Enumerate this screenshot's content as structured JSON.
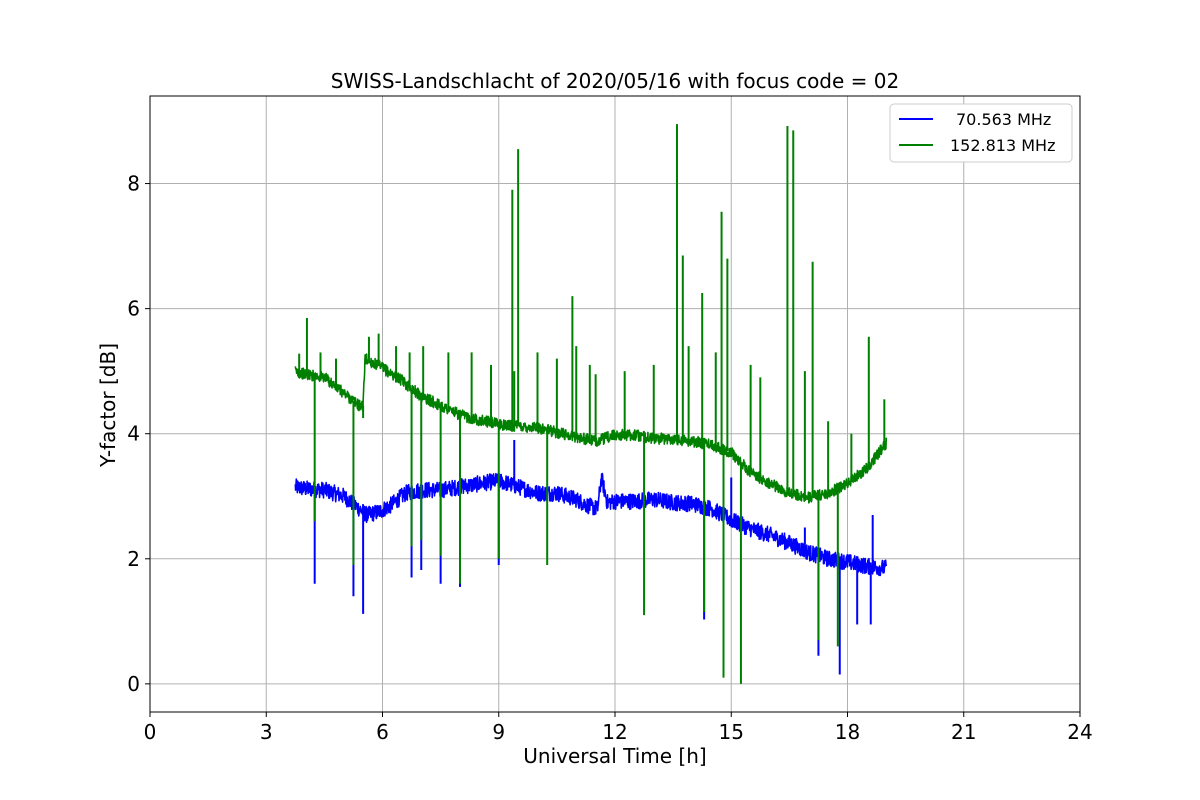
{
  "chart_data": {
    "type": "line",
    "title": "SWISS-Landschlacht of 2020/05/16 with focus code = 02",
    "xlabel": "Universal Time [h]",
    "ylabel": "Y-factor [dB]",
    "xlim": [
      0,
      24
    ],
    "ylim": [
      -0.45,
      9.4
    ],
    "xticks": [
      0,
      3,
      6,
      9,
      12,
      15,
      18,
      21,
      24
    ],
    "xtick_labels": [
      "0",
      "3",
      "6",
      "9",
      "12",
      "15",
      "18",
      "21",
      "24"
    ],
    "yticks": [
      0,
      2,
      4,
      6,
      8
    ],
    "ytick_labels": [
      "0",
      "2",
      "4",
      "6",
      "8"
    ],
    "grid": true,
    "legend_position": "top-right",
    "series": [
      {
        "name": "70.563 MHz",
        "color": "#0000ff",
        "noise": 0.13,
        "x_start": 3.75,
        "x_end": 19.0,
        "baseline": [
          [
            3.75,
            3.15
          ],
          [
            4.0,
            3.12
          ],
          [
            4.5,
            3.1
          ],
          [
            5.0,
            3.0
          ],
          [
            5.3,
            2.85
          ],
          [
            5.6,
            2.7
          ],
          [
            5.9,
            2.75
          ],
          [
            6.2,
            2.85
          ],
          [
            6.6,
            3.05
          ],
          [
            7.0,
            3.1
          ],
          [
            7.5,
            3.1
          ],
          [
            8.0,
            3.15
          ],
          [
            8.5,
            3.2
          ],
          [
            9.0,
            3.25
          ],
          [
            9.5,
            3.15
          ],
          [
            10.0,
            3.05
          ],
          [
            10.5,
            3.05
          ],
          [
            11.0,
            2.95
          ],
          [
            11.3,
            2.85
          ],
          [
            11.55,
            2.8
          ],
          [
            11.65,
            3.3
          ],
          [
            11.8,
            2.9
          ],
          [
            12.0,
            2.92
          ],
          [
            12.5,
            2.92
          ],
          [
            13.0,
            2.95
          ],
          [
            13.5,
            2.9
          ],
          [
            14.0,
            2.88
          ],
          [
            14.5,
            2.8
          ],
          [
            15.0,
            2.62
          ],
          [
            15.5,
            2.48
          ],
          [
            16.0,
            2.38
          ],
          [
            16.5,
            2.25
          ],
          [
            17.0,
            2.1
          ],
          [
            17.5,
            2.0
          ],
          [
            18.0,
            1.95
          ],
          [
            18.5,
            1.88
          ],
          [
            19.0,
            1.85
          ]
        ],
        "spikes": [
          [
            4.25,
            1.6
          ],
          [
            5.25,
            1.4
          ],
          [
            5.5,
            1.12
          ],
          [
            6.75,
            1.7
          ],
          [
            7.0,
            1.82
          ],
          [
            7.5,
            1.6
          ],
          [
            8.0,
            1.55
          ],
          [
            9.0,
            1.9
          ],
          [
            9.4,
            3.9
          ],
          [
            14.3,
            1.03
          ],
          [
            15.0,
            3.3
          ],
          [
            17.25,
            0.45
          ],
          [
            17.8,
            0.15
          ],
          [
            18.25,
            0.95
          ],
          [
            18.6,
            0.95
          ],
          [
            18.65,
            2.7
          ],
          [
            16.9,
            2.5
          ]
        ]
      },
      {
        "name": "152.813 MHz",
        "color": "#008000",
        "noise": 0.09,
        "x_start": 3.75,
        "x_end": 19.0,
        "baseline": [
          [
            3.75,
            5.0
          ],
          [
            4.0,
            4.95
          ],
          [
            4.5,
            4.9
          ],
          [
            5.0,
            4.65
          ],
          [
            5.4,
            4.45
          ],
          [
            5.5,
            4.45
          ],
          [
            5.55,
            5.2
          ],
          [
            6.0,
            5.05
          ],
          [
            6.5,
            4.85
          ],
          [
            7.0,
            4.6
          ],
          [
            7.5,
            4.45
          ],
          [
            8.0,
            4.3
          ],
          [
            8.5,
            4.22
          ],
          [
            9.0,
            4.15
          ],
          [
            9.5,
            4.12
          ],
          [
            10.0,
            4.1
          ],
          [
            10.5,
            4.02
          ],
          [
            11.0,
            3.95
          ],
          [
            11.5,
            3.88
          ],
          [
            12.0,
            3.98
          ],
          [
            12.5,
            3.98
          ],
          [
            13.0,
            3.92
          ],
          [
            13.5,
            3.92
          ],
          [
            14.0,
            3.88
          ],
          [
            14.5,
            3.82
          ],
          [
            15.0,
            3.7
          ],
          [
            15.5,
            3.38
          ],
          [
            16.0,
            3.2
          ],
          [
            16.5,
            3.05
          ],
          [
            17.0,
            2.98
          ],
          [
            17.5,
            3.05
          ],
          [
            18.0,
            3.2
          ],
          [
            18.5,
            3.45
          ],
          [
            19.0,
            3.85
          ]
        ],
        "spikes": [
          [
            3.85,
            5.28
          ],
          [
            4.05,
            5.85
          ],
          [
            4.25,
            2.6
          ],
          [
            4.4,
            5.3
          ],
          [
            4.8,
            5.2
          ],
          [
            5.25,
            1.9
          ],
          [
            5.5,
            4.25
          ],
          [
            5.65,
            5.55
          ],
          [
            5.9,
            5.6
          ],
          [
            6.35,
            5.4
          ],
          [
            6.7,
            5.3
          ],
          [
            6.75,
            2.2
          ],
          [
            7.0,
            2.3
          ],
          [
            7.05,
            5.4
          ],
          [
            7.5,
            2.05
          ],
          [
            7.7,
            5.3
          ],
          [
            8.0,
            1.6
          ],
          [
            8.3,
            5.3
          ],
          [
            8.8,
            5.1
          ],
          [
            9.0,
            2.0
          ],
          [
            9.35,
            7.9
          ],
          [
            9.4,
            5.0
          ],
          [
            9.5,
            8.55
          ],
          [
            10.0,
            5.3
          ],
          [
            10.25,
            1.9
          ],
          [
            10.5,
            5.2
          ],
          [
            10.9,
            6.2
          ],
          [
            11.0,
            5.4
          ],
          [
            11.35,
            5.1
          ],
          [
            11.5,
            4.95
          ],
          [
            12.25,
            5.0
          ],
          [
            12.75,
            1.1
          ],
          [
            13.0,
            5.1
          ],
          [
            13.6,
            8.95
          ],
          [
            13.75,
            6.85
          ],
          [
            13.9,
            5.4
          ],
          [
            14.25,
            6.25
          ],
          [
            14.3,
            1.15
          ],
          [
            14.6,
            5.3
          ],
          [
            14.75,
            7.55
          ],
          [
            14.8,
            0.1
          ],
          [
            14.9,
            6.8
          ],
          [
            15.25,
            0.0
          ],
          [
            15.5,
            5.1
          ],
          [
            15.75,
            4.9
          ],
          [
            16.45,
            8.92
          ],
          [
            16.6,
            8.85
          ],
          [
            16.9,
            5.0
          ],
          [
            17.1,
            6.75
          ],
          [
            17.25,
            0.7
          ],
          [
            17.5,
            4.2
          ],
          [
            17.75,
            0.6
          ],
          [
            18.1,
            4.0
          ],
          [
            18.55,
            5.55
          ],
          [
            18.95,
            4.55
          ]
        ]
      }
    ]
  }
}
